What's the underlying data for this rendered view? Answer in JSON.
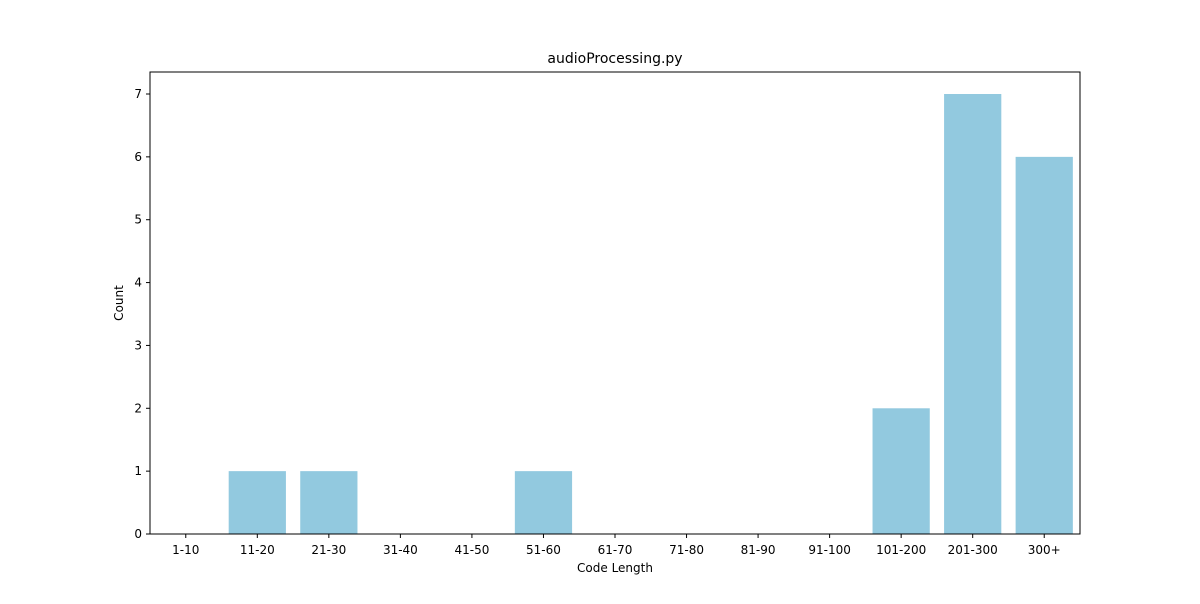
{
  "chart_data": {
    "type": "bar",
    "title": "audioProcessing.py",
    "xlabel": "Code Length",
    "ylabel": "Count",
    "categories": [
      "1-10",
      "11-20",
      "21-30",
      "31-40",
      "41-50",
      "51-60",
      "61-70",
      "71-80",
      "81-90",
      "91-100",
      "101-200",
      "201-300",
      "300+"
    ],
    "values": [
      0,
      1,
      1,
      0,
      0,
      1,
      0,
      0,
      0,
      0,
      2,
      7,
      6
    ],
    "ylim": [
      0,
      7.35
    ],
    "yticks": [
      0,
      1,
      2,
      3,
      4,
      5,
      6,
      7
    ],
    "grid": false,
    "legend": "none",
    "bar_color": "#92c9df"
  }
}
